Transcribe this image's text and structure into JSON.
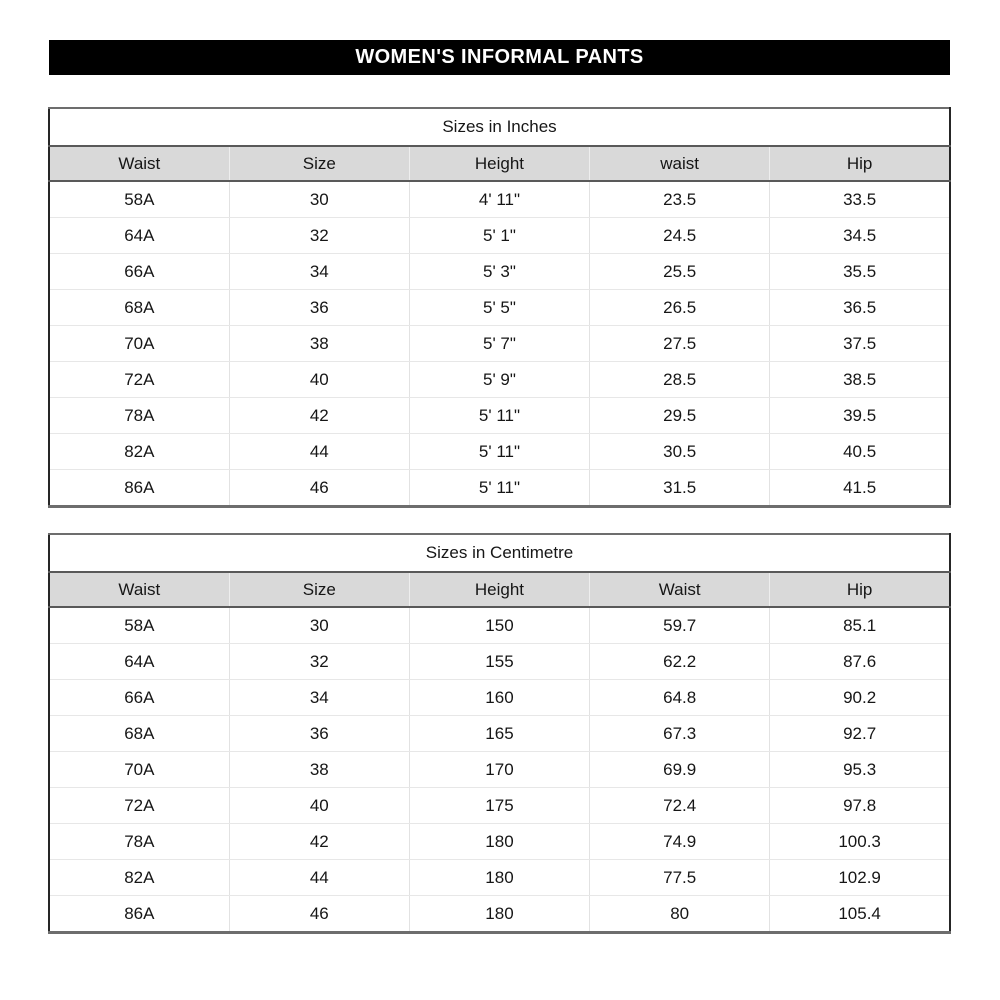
{
  "page_title": "WOMEN'S INFORMAL PANTS",
  "tables": [
    {
      "title": "Sizes in Inches",
      "headers": [
        "Waist",
        "Size",
        "Height",
        "waist",
        "Hip"
      ],
      "rows": [
        [
          "58A",
          "30",
          "4' 11\"",
          "23.5",
          "33.5"
        ],
        [
          "64A",
          "32",
          "5' 1\"",
          "24.5",
          "34.5"
        ],
        [
          "66A",
          "34",
          "5' 3\"",
          "25.5",
          "35.5"
        ],
        [
          "68A",
          "36",
          "5' 5\"",
          "26.5",
          "36.5"
        ],
        [
          "70A",
          "38",
          "5' 7\"",
          "27.5",
          "37.5"
        ],
        [
          "72A",
          "40",
          "5' 9\"",
          "28.5",
          "38.5"
        ],
        [
          "78A",
          "42",
          "5' 11\"",
          "29.5",
          "39.5"
        ],
        [
          "82A",
          "44",
          "5' 11\"",
          "30.5",
          "40.5"
        ],
        [
          "86A",
          "46",
          "5' 11\"",
          "31.5",
          "41.5"
        ]
      ]
    },
    {
      "title": "Sizes in Centimetre",
      "headers": [
        "Waist",
        "Size",
        "Height",
        "Waist",
        "Hip"
      ],
      "rows": [
        [
          "58A",
          "30",
          "150",
          "59.7",
          "85.1"
        ],
        [
          "64A",
          "32",
          "155",
          "62.2",
          "87.6"
        ],
        [
          "66A",
          "34",
          "160",
          "64.8",
          "90.2"
        ],
        [
          "68A",
          "36",
          "165",
          "67.3",
          "92.7"
        ],
        [
          "70A",
          "38",
          "170",
          "69.9",
          "95.3"
        ],
        [
          "72A",
          "40",
          "175",
          "72.4",
          "97.8"
        ],
        [
          "78A",
          "42",
          "180",
          "74.9",
          "100.3"
        ],
        [
          "82A",
          "44",
          "180",
          "77.5",
          "102.9"
        ],
        [
          "86A",
          "46",
          "180",
          "80",
          "105.4"
        ]
      ]
    }
  ],
  "colors": {
    "title_bar_bg": "#000000",
    "title_bar_text": "#ffffff",
    "header_row_bg": "#d9d9d9",
    "outer_border": "#262626",
    "heavy_divider": "#595959",
    "row_divider": "#e7e7e7",
    "text": "#161616"
  }
}
